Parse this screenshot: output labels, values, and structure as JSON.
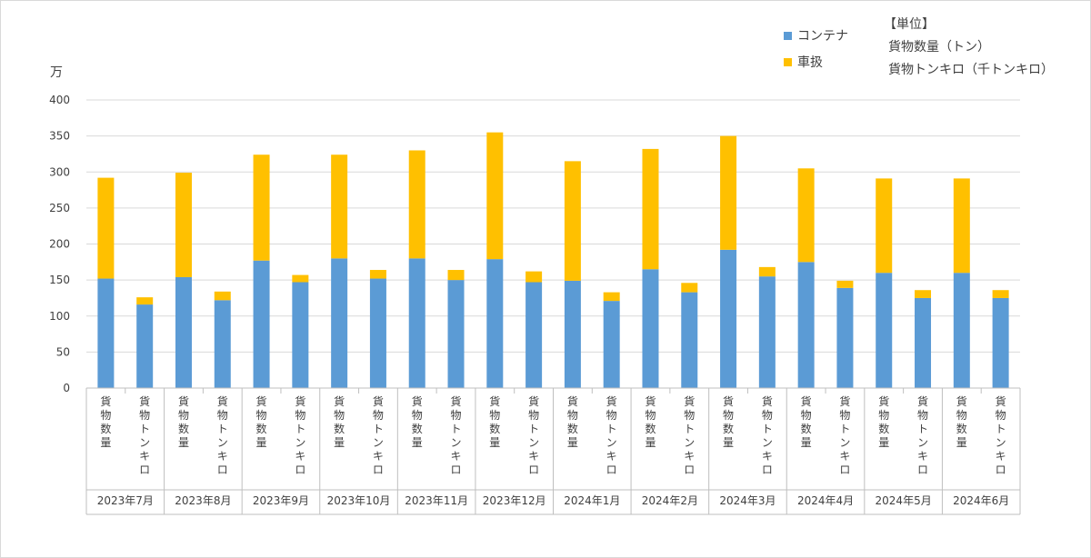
{
  "chart_data": {
    "type": "bar",
    "stacked": true,
    "y_unit_label": "万",
    "ylim": [
      0,
      400
    ],
    "y_ticks": [
      0,
      50,
      100,
      150,
      200,
      250,
      300,
      350,
      400
    ],
    "grid": true,
    "legend_position": "top-right",
    "unit_box": {
      "title": "【単位】",
      "lines": [
        "貨物数量（トン）",
        "貨物トンキロ（千トンキロ）"
      ]
    },
    "sub_categories": [
      "貨物数量",
      "貨物トンキロ"
    ],
    "months": [
      "2023年7月",
      "2023年8月",
      "2023年9月",
      "2023年10月",
      "2023年11月",
      "2023年12月",
      "2024年1月",
      "2024年2月",
      "2024年3月",
      "2024年4月",
      "2024年5月",
      "2024年6月"
    ],
    "series": [
      {
        "name": "コンテナ",
        "color": "#5b9bd5",
        "values": [
          [
            152,
            116
          ],
          [
            154,
            122
          ],
          [
            177,
            147
          ],
          [
            180,
            152
          ],
          [
            180,
            150
          ],
          [
            179,
            147
          ],
          [
            149,
            121
          ],
          [
            165,
            133
          ],
          [
            192,
            155
          ],
          [
            175,
            139
          ],
          [
            160,
            125
          ],
          [
            160,
            125
          ]
        ]
      },
      {
        "name": "車扱",
        "color": "#ffc000",
        "values": [
          [
            140,
            10
          ],
          [
            145,
            12
          ],
          [
            147,
            10
          ],
          [
            144,
            12
          ],
          [
            150,
            14
          ],
          [
            176,
            15
          ],
          [
            166,
            12
          ],
          [
            167,
            13
          ],
          [
            158,
            13
          ],
          [
            130,
            10
          ],
          [
            131,
            11
          ],
          [
            131,
            11
          ]
        ]
      }
    ]
  }
}
